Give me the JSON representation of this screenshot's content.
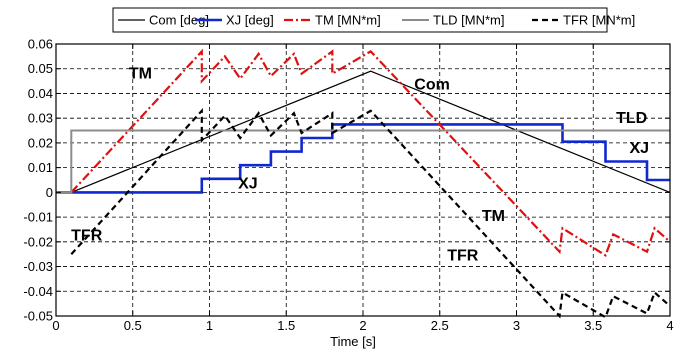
{
  "chart_data": {
    "type": "line",
    "xlabel": "Time [s]",
    "ylabel": "",
    "xlim": [
      0,
      4
    ],
    "ylim": [
      -0.05,
      0.06
    ],
    "xticks": [
      0,
      0.5,
      1,
      1.5,
      2,
      2.5,
      3,
      3.5,
      4
    ],
    "yticks": [
      -0.05,
      -0.04,
      -0.03,
      -0.02,
      -0.01,
      0,
      0.01,
      0.02,
      0.03,
      0.04,
      0.05,
      0.06
    ],
    "xtick_labels": [
      "0",
      "0.5",
      "1",
      "1.5",
      "2",
      "2.5",
      "3",
      "3.5",
      "4"
    ],
    "ytick_labels": [
      "-0.05",
      "-0.04",
      "-0.03",
      "-0.02",
      "-0.01",
      "0",
      "0.01",
      "0.02",
      "0.03",
      "0.04",
      "0.05",
      "0.06"
    ],
    "grid": true,
    "legend_position": "top",
    "series": [
      {
        "name": "Com [deg]",
        "color": "#000000",
        "style": "solid",
        "points": [
          [
            0.1,
            0
          ],
          [
            2.05,
            0.049
          ],
          [
            4,
            0
          ]
        ]
      },
      {
        "name": "XJ [deg]",
        "color": "#1028d0",
        "style": "solid",
        "points": [
          [
            0,
            0
          ],
          [
            0.95,
            0
          ],
          [
            0.95,
            0.0055
          ],
          [
            1.2,
            0.0055
          ],
          [
            1.2,
            0.011
          ],
          [
            1.4,
            0.011
          ],
          [
            1.4,
            0.0165
          ],
          [
            1.6,
            0.0165
          ],
          [
            1.6,
            0.022
          ],
          [
            1.8,
            0.022
          ],
          [
            1.8,
            0.0275
          ],
          [
            3.3,
            0.0275
          ],
          [
            3.3,
            0.0205
          ],
          [
            3.58,
            0.0205
          ],
          [
            3.58,
            0.0125
          ],
          [
            3.85,
            0.0125
          ],
          [
            3.85,
            0.005
          ],
          [
            4,
            0.005
          ]
        ]
      },
      {
        "name": "TM [MN*m]",
        "color": "#e01010",
        "style": "dashdot",
        "points": [
          [
            0.1,
            0
          ],
          [
            0.95,
            0.057
          ],
          [
            0.95,
            0.045
          ],
          [
            1.1,
            0.055
          ],
          [
            1.2,
            0.046
          ],
          [
            1.32,
            0.056
          ],
          [
            1.4,
            0.047
          ],
          [
            1.55,
            0.056
          ],
          [
            1.6,
            0.048
          ],
          [
            1.8,
            0.057
          ],
          [
            1.8,
            0.048
          ],
          [
            2.05,
            0.057
          ],
          [
            3.28,
            -0.024
          ],
          [
            3.3,
            -0.0145
          ],
          [
            3.58,
            -0.0255
          ],
          [
            3.63,
            -0.017
          ],
          [
            3.85,
            -0.024
          ],
          [
            3.9,
            -0.0145
          ],
          [
            4,
            -0.02
          ]
        ]
      },
      {
        "name": "TLD [MN*m]",
        "color": "#8c8c8c",
        "style": "solid",
        "points": [
          [
            0,
            0
          ],
          [
            0.1,
            0
          ],
          [
            0.1,
            0.025
          ],
          [
            4,
            0.025
          ]
        ]
      },
      {
        "name": "TFR [MN*m]",
        "color": "#000000",
        "style": "dashed",
        "points": [
          [
            0.1,
            -0.025
          ],
          [
            0.95,
            0.033
          ],
          [
            0.95,
            0.021
          ],
          [
            1.1,
            0.031
          ],
          [
            1.2,
            0.022
          ],
          [
            1.32,
            0.032
          ],
          [
            1.4,
            0.023
          ],
          [
            1.55,
            0.032
          ],
          [
            1.6,
            0.024
          ],
          [
            1.8,
            0.032
          ],
          [
            1.8,
            0.024
          ],
          [
            2.05,
            0.033
          ],
          [
            3.28,
            -0.05
          ],
          [
            3.3,
            -0.0405
          ],
          [
            3.58,
            -0.0505
          ],
          [
            3.63,
            -0.042
          ],
          [
            3.85,
            -0.049
          ],
          [
            3.9,
            -0.0405
          ],
          [
            4,
            -0.046
          ]
        ]
      }
    ],
    "annotations": [
      {
        "text": "TM",
        "x": 0.55,
        "y": 0.046
      },
      {
        "text": "Com",
        "x": 2.45,
        "y": 0.0415
      },
      {
        "text": "TLD",
        "x": 3.75,
        "y": 0.028
      },
      {
        "text": "XJ",
        "x": 3.8,
        "y": 0.016
      },
      {
        "text": "XJ",
        "x": 1.25,
        "y": 0.0015
      },
      {
        "text": "TFR",
        "x": 0.2,
        "y": -0.0195
      },
      {
        "text": "TM",
        "x": 2.85,
        "y": -0.0115
      },
      {
        "text": "TFR",
        "x": 2.65,
        "y": -0.0275
      }
    ]
  }
}
